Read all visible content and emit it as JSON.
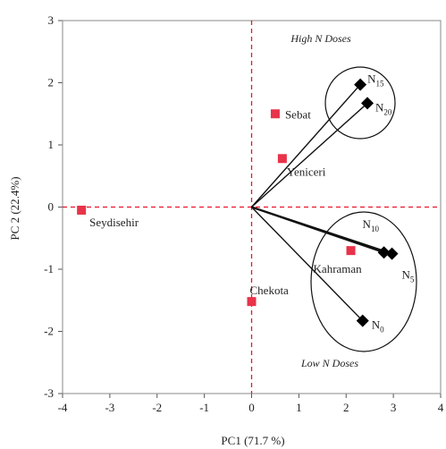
{
  "chart_data": {
    "type": "scatter",
    "xlabel": "PC1  (71.7 %)",
    "ylabel": "PC 2  (22.4%)",
    "xlim": [
      -4,
      4
    ],
    "ylim": [
      -3,
      3
    ],
    "xticks": [
      "-4",
      "-3",
      "-2",
      "-1",
      "0",
      "1",
      "2",
      "3",
      "4"
    ],
    "yticks": [
      "3",
      "2",
      "1",
      "0",
      "-1",
      "-2",
      "-3"
    ],
    "reference_lines": {
      "x": 0,
      "y": 0,
      "color": "#e8142a",
      "style": "dashed"
    },
    "varieties": [
      {
        "name": "Seydisehir",
        "x": -3.6,
        "y": -0.05
      },
      {
        "name": "Sebat",
        "x": 0.5,
        "y": 1.5
      },
      {
        "name": "Yeniceri",
        "x": 0.65,
        "y": 0.78
      },
      {
        "name": "Kahraman",
        "x": 2.1,
        "y": -0.7
      },
      {
        "name": "Chekota",
        "x": 0.0,
        "y": -1.52
      }
    ],
    "doses": [
      {
        "base": "N",
        "sub": "15",
        "x": 2.3,
        "y": 1.97
      },
      {
        "base": "N",
        "sub": "20",
        "x": 2.45,
        "y": 1.67
      },
      {
        "base": "N",
        "sub": "10",
        "x": 2.8,
        "y": -0.73
      },
      {
        "base": "N",
        "sub": "5",
        "x": 2.97,
        "y": -0.75
      },
      {
        "base": "N",
        "sub": "0",
        "x": 2.35,
        "y": -1.83
      }
    ],
    "group_labels": [
      "High N Doses",
      "Low N Doses"
    ],
    "variety_color": "#e8334a",
    "dose_color": "#000000"
  }
}
